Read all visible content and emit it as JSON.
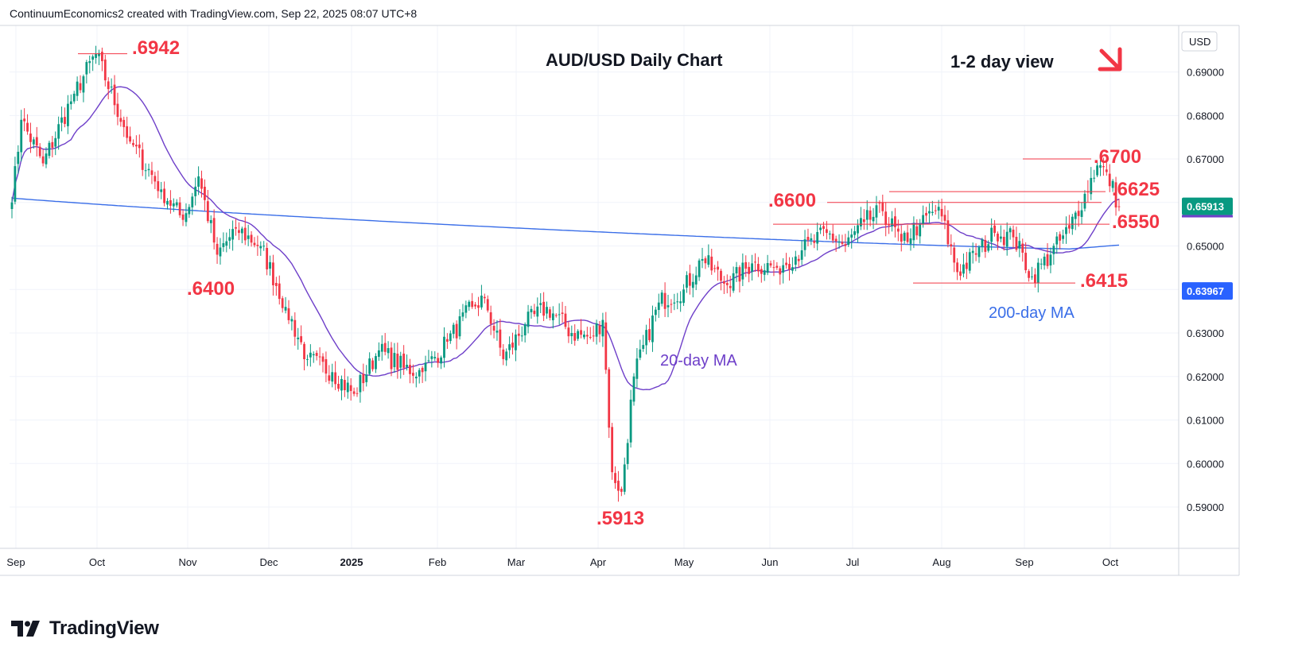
{
  "header": "ContinuumEconomics2 created with TradingView.com, Sep 22, 2025 08:07 UTC+8",
  "brand": "TradingView",
  "icons": [
    "tradingview-logo-icon",
    "down-arrow-icon"
  ],
  "colors": {
    "up": "#089981",
    "down": "#f23645",
    "ma20": "#6e3fc9",
    "ma200": "#3a6ee8",
    "annotation": "#f23645",
    "price_tag": "#089981",
    "ma200_tag": "#2962ff"
  },
  "chart_data": {
    "type": "candlestick",
    "title": "AUD/USD Daily Chart",
    "subtitle": "1-2 day view",
    "currency": "USD",
    "ylim": [
      0.5805,
      0.7007
    ],
    "y_ticks": [
      "0.69000",
      "0.68000",
      "0.67000",
      "0.66000",
      "0.65000",
      "0.64000",
      "0.63000",
      "0.62000",
      "0.61000",
      "0.60000",
      "0.59000"
    ],
    "x_labels": [
      "Sep",
      "Oct",
      "Nov",
      "Dec",
      "2025",
      "Feb",
      "Mar",
      "Apr",
      "May",
      "Jun",
      "Jul",
      "Aug",
      "Sep",
      "Oct"
    ],
    "current_price": "0.65913",
    "ma200_value": "0.63967",
    "annotations": [
      ".6942",
      ".6700",
      ".6625",
      ".6600",
      ".6550",
      ".6415",
      ".6400",
      ".5913"
    ],
    "ma_labels": [
      "20-day MA",
      "200-day MA"
    ],
    "key_points": [
      [
        0,
        0.66
      ],
      [
        3,
        0.679
      ],
      [
        10,
        0.669
      ],
      [
        20,
        0.685
      ],
      [
        27,
        0.6942
      ],
      [
        38,
        0.674
      ],
      [
        48,
        0.663
      ],
      [
        55,
        0.656
      ],
      [
        60,
        0.666
      ],
      [
        66,
        0.648
      ],
      [
        72,
        0.654
      ],
      [
        80,
        0.65
      ],
      [
        88,
        0.636
      ],
      [
        95,
        0.624
      ],
      [
        103,
        0.621
      ],
      [
        110,
        0.616
      ],
      [
        118,
        0.626
      ],
      [
        126,
        0.622
      ],
      [
        132,
        0.621
      ],
      [
        140,
        0.628
      ],
      [
        148,
        0.636
      ],
      [
        152,
        0.638
      ],
      [
        158,
        0.624
      ],
      [
        165,
        0.632
      ],
      [
        172,
        0.636
      ],
      [
        180,
        0.63
      ],
      [
        186,
        0.629
      ],
      [
        190,
        0.633
      ],
      [
        193,
        0.598
      ],
      [
        196,
        0.5935
      ],
      [
        200,
        0.62
      ],
      [
        208,
        0.637
      ],
      [
        216,
        0.64
      ],
      [
        222,
        0.647
      ],
      [
        230,
        0.641
      ],
      [
        238,
        0.646
      ],
      [
        246,
        0.645
      ],
      [
        254,
        0.649
      ],
      [
        262,
        0.653
      ],
      [
        268,
        0.65
      ],
      [
        274,
        0.6555
      ],
      [
        280,
        0.658
      ],
      [
        286,
        0.651
      ],
      [
        292,
        0.655
      ],
      [
        298,
        0.659
      ],
      [
        304,
        0.644
      ],
      [
        310,
        0.648
      ],
      [
        316,
        0.653
      ],
      [
        322,
        0.652
      ],
      [
        328,
        0.643
      ],
      [
        334,
        0.648
      ],
      [
        340,
        0.654
      ],
      [
        345,
        0.662
      ],
      [
        349,
        0.6685
      ],
      [
        352,
        0.667
      ],
      [
        356,
        0.659
      ]
    ]
  }
}
